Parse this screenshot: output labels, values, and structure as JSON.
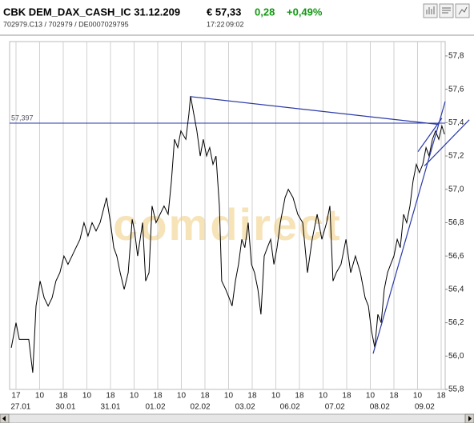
{
  "header": {
    "title": "CBK DEM_DAX_CASH_IC 31.12.209",
    "price": "€ 57,33",
    "change": "0,28",
    "change_pct": "+0,49%",
    "ids": "702979.C13 / 702979 / DE0007029795",
    "time": "17:22",
    "date": "09:02"
  },
  "chart_data": {
    "type": "line",
    "color": "#000000",
    "watermark": "comdirect",
    "x": [
      -0.2,
      0,
      0.14,
      0.34,
      0.54,
      0.71,
      0.85,
      1.02,
      1.19,
      1.36,
      1.53,
      1.69,
      1.86,
      2.03,
      2.2,
      2.37,
      2.54,
      2.71,
      2.88,
      3.05,
      3.22,
      3.39,
      3.56,
      3.83,
      4.0,
      4.14,
      4.27,
      4.41,
      4.58,
      4.75,
      4.92,
      5.02,
      5.15,
      5.36,
      5.49,
      5.63,
      5.76,
      5.93,
      6.1,
      6.27,
      6.44,
      6.58,
      6.71,
      6.85,
      6.98,
      7.19,
      7.32,
      7.39,
      7.53,
      7.66,
      7.8,
      7.93,
      8.07,
      8.2,
      8.34,
      8.47,
      8.61,
      8.71,
      8.88,
      9.02,
      9.15,
      9.29,
      9.42,
      9.56,
      9.69,
      9.83,
      9.97,
      10.1,
      10.24,
      10.37,
      10.51,
      10.64,
      10.78,
      10.92,
      11.05,
      11.19,
      11.39,
      11.53,
      11.73,
      11.93,
      12.14,
      12.34,
      12.54,
      12.75,
      12.95,
      13.15,
      13.29,
      13.42,
      13.56,
      13.76,
      13.97,
      14.17,
      14.37,
      14.58,
      14.78,
      14.92,
      15.05,
      15.19,
      15.32,
      15.46,
      15.59,
      15.73,
      15.86,
      16.0,
      16.14,
      16.27,
      16.41,
      16.54,
      16.68,
      16.81,
      16.95,
      17.08,
      17.22,
      17.36,
      17.49,
      17.63,
      17.76,
      17.9,
      18.03,
      18.14
    ],
    "values": [
      56.05,
      56.2,
      56.1,
      56.1,
      56.1,
      55.9,
      56.3,
      56.45,
      56.35,
      56.3,
      56.35,
      56.45,
      56.5,
      56.6,
      56.55,
      56.6,
      56.65,
      56.7,
      56.8,
      56.72,
      56.8,
      56.75,
      56.8,
      56.95,
      56.8,
      56.65,
      56.6,
      56.5,
      56.4,
      56.5,
      56.82,
      56.75,
      56.6,
      56.8,
      56.45,
      56.5,
      56.9,
      56.8,
      56.85,
      56.9,
      56.85,
      57.05,
      57.3,
      57.25,
      57.35,
      57.3,
      57.45,
      57.56,
      57.45,
      57.35,
      57.2,
      57.3,
      57.2,
      57.25,
      57.15,
      57.2,
      56.9,
      56.45,
      56.4,
      56.35,
      56.3,
      56.45,
      56.55,
      56.7,
      56.65,
      56.8,
      56.55,
      56.5,
      56.4,
      56.25,
      56.6,
      56.65,
      56.7,
      56.55,
      56.65,
      56.8,
      56.95,
      57.0,
      56.95,
      56.85,
      56.8,
      56.5,
      56.7,
      56.85,
      56.7,
      56.8,
      56.9,
      56.45,
      56.5,
      56.55,
      56.7,
      56.5,
      56.6,
      56.5,
      56.35,
      56.3,
      56.15,
      56.05,
      56.25,
      56.2,
      56.4,
      56.5,
      56.55,
      56.6,
      56.7,
      56.65,
      56.85,
      56.8,
      56.9,
      57.05,
      57.15,
      57.1,
      57.15,
      57.25,
      57.2,
      57.3,
      57.35,
      57.3,
      57.38,
      57.33
    ],
    "xlim": [
      -0.27,
      18.17
    ],
    "ylim": [
      55.8,
      57.886
    ],
    "yticks": [
      {
        "value": 55.8,
        "label": "55,8"
      },
      {
        "value": 56.0,
        "label": "56,0"
      },
      {
        "value": 56.2,
        "label": "56,2"
      },
      {
        "value": 56.4,
        "label": "56,4"
      },
      {
        "value": 56.6,
        "label": "56,6"
      },
      {
        "value": 56.8,
        "label": "56,8"
      },
      {
        "value": 57.0,
        "label": "57,0"
      },
      {
        "value": 57.2,
        "label": "57,2"
      },
      {
        "value": 57.4,
        "label": "57,4"
      },
      {
        "value": 57.6,
        "label": "57,6"
      },
      {
        "value": 57.8,
        "label": "57,8"
      }
    ],
    "xticks": [
      {
        "value": 0,
        "label": "17"
      },
      {
        "value": 1,
        "label": "10"
      },
      {
        "value": 2,
        "label": "18"
      },
      {
        "value": 3,
        "label": "10"
      },
      {
        "value": 4,
        "label": "18"
      },
      {
        "value": 5,
        "label": "10"
      },
      {
        "value": 6,
        "label": "18"
      },
      {
        "value": 7,
        "label": "10"
      },
      {
        "value": 8,
        "label": "18"
      },
      {
        "value": 9,
        "label": "10"
      },
      {
        "value": 10,
        "label": "18"
      },
      {
        "value": 11,
        "label": "10"
      },
      {
        "value": 12,
        "label": "18"
      },
      {
        "value": 13,
        "label": "10"
      },
      {
        "value": 14,
        "label": "18"
      },
      {
        "value": 15,
        "label": "10"
      },
      {
        "value": 16,
        "label": "18"
      },
      {
        "value": 17,
        "label": "10"
      },
      {
        "value": 18,
        "label": "18"
      }
    ],
    "xdates": [
      {
        "value": 0.2,
        "label": "27.01"
      },
      {
        "value": 2.1,
        "label": "30.01"
      },
      {
        "value": 4.0,
        "label": "31.01"
      },
      {
        "value": 5.9,
        "label": "01.02"
      },
      {
        "value": 7.8,
        "label": "02.02"
      },
      {
        "value": 9.7,
        "label": "03.02"
      },
      {
        "value": 11.6,
        "label": "06.02"
      },
      {
        "value": 13.5,
        "label": "07.02"
      },
      {
        "value": 15.4,
        "label": "08.02"
      },
      {
        "value": 17.3,
        "label": "09.02"
      }
    ],
    "grid": true,
    "hline": {
      "value": 57.397,
      "label": "57,397",
      "color": "#2b3aa8"
    },
    "trendlines": [
      {
        "x": [
          7.39,
          17.9
        ],
        "y": [
          57.556,
          57.389
        ]
      },
      {
        "x": [
          15.12,
          18.17
        ],
        "y": [
          56.015,
          57.527
        ]
      },
      {
        "x": [
          17.02,
          18.03
        ],
        "y": [
          57.226,
          57.427
        ]
      },
      {
        "x": [
          17.29,
          19.19
        ],
        "y": [
          57.14,
          57.417
        ]
      }
    ],
    "trend_color": "#2b3aa8"
  }
}
